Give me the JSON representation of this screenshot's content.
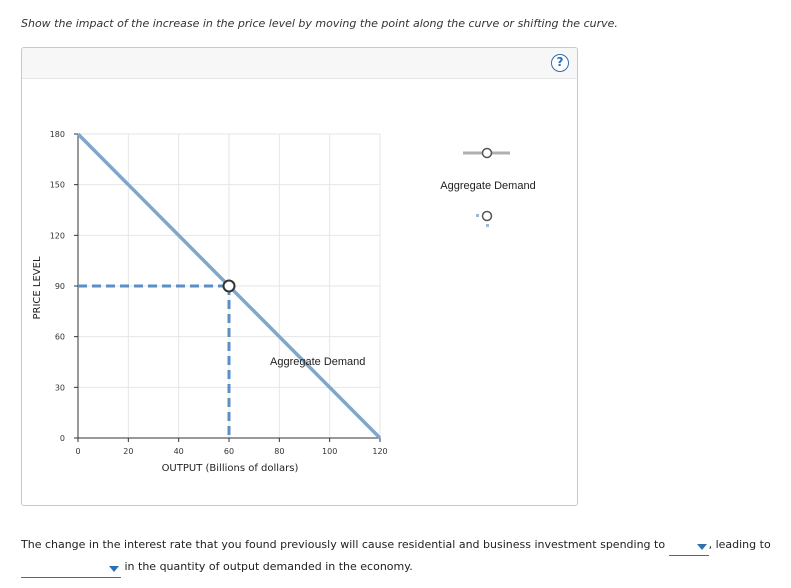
{
  "instruction": "Show the impact of the increase in the price level by moving the point along the curve or shifting the curve.",
  "help_icon": {
    "name": "help-icon",
    "glyph": "?"
  },
  "chart_data": {
    "type": "line",
    "xlabel": "OUTPUT (Billions of dollars)",
    "ylabel": "PRICE LEVEL",
    "xlim": [
      0,
      120
    ],
    "ylim": [
      0,
      180
    ],
    "x_ticks": [
      0,
      20,
      40,
      60,
      80,
      100,
      120
    ],
    "y_ticks": [
      0,
      30,
      60,
      90,
      120,
      150,
      180
    ],
    "grid": true,
    "series": [
      {
        "name": "Aggregate Demand",
        "x": [
          0,
          120
        ],
        "y": [
          180,
          0
        ],
        "color": "#7fa7cc"
      }
    ],
    "curve_label": "Aggregate Demand",
    "point": {
      "x": 60,
      "y": 90,
      "dashed_guides": true
    },
    "legend": [
      {
        "label": "Aggregate Demand",
        "symbol": "line-with-circle"
      },
      {
        "label": "",
        "symbol": "dashed-point-circle"
      }
    ],
    "legend_placement": "right"
  },
  "question": {
    "part1": "The change in the interest rate that you found previously will cause residential and business investment spending to",
    "dropdown1_value": "",
    "part2": ", leading to",
    "dropdown2_value": "",
    "part3": "in the quantity of output demanded in the economy."
  },
  "colors": {
    "curve": "#7fa7cc",
    "guide": "#5b8fc5",
    "accent": "#2f6fb3",
    "grid": "#e6e6e6"
  }
}
